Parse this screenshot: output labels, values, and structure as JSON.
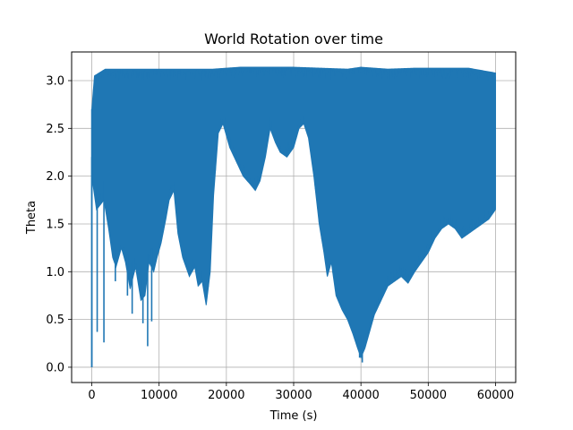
{
  "chart_data": {
    "type": "line",
    "title": "World Rotation over time",
    "xlabel": "Time (s)",
    "ylabel": "Theta",
    "xlim": [
      -3000,
      63000
    ],
    "ylim": [
      -0.16,
      3.3
    ],
    "xticks": [
      0,
      10000,
      20000,
      30000,
      40000,
      50000,
      60000
    ],
    "xtick_labels": [
      "0",
      "10000",
      "20000",
      "30000",
      "40000",
      "50000",
      "60000"
    ],
    "yticks": [
      0.0,
      0.5,
      1.0,
      1.5,
      2.0,
      2.5,
      3.0
    ],
    "ytick_labels": [
      "0.0",
      "0.5",
      "1.0",
      "1.5",
      "2.0",
      "2.5",
      "3.0"
    ],
    "grid": true,
    "color": "#1f77b4",
    "series": [
      {
        "upper": [
          [
            0,
            2.7
          ],
          [
            400,
            3.05
          ],
          [
            2000,
            3.12
          ],
          [
            6000,
            3.12
          ],
          [
            10000,
            3.12
          ],
          [
            12000,
            3.12
          ],
          [
            14000,
            3.12
          ],
          [
            18000,
            3.12
          ],
          [
            22000,
            3.14
          ],
          [
            26000,
            3.14
          ],
          [
            30000,
            3.14
          ],
          [
            34000,
            3.13
          ],
          [
            38000,
            3.12
          ],
          [
            40000,
            3.14
          ],
          [
            44000,
            3.12
          ],
          [
            48000,
            3.13
          ],
          [
            52000,
            3.13
          ],
          [
            56000,
            3.13
          ],
          [
            60000,
            3.08
          ]
        ],
        "lower": [
          [
            0,
            2.0
          ],
          [
            700,
            1.65
          ],
          [
            1800,
            1.75
          ],
          [
            2500,
            1.45
          ],
          [
            3100,
            1.15
          ],
          [
            3600,
            1.05
          ],
          [
            4400,
            1.25
          ],
          [
            5000,
            1.1
          ],
          [
            5700,
            0.82
          ],
          [
            6500,
            1.05
          ],
          [
            7300,
            0.7
          ],
          [
            7900,
            0.75
          ],
          [
            8500,
            1.1
          ],
          [
            9200,
            1.0
          ],
          [
            9700,
            1.15
          ],
          [
            10300,
            1.3
          ],
          [
            11000,
            1.55
          ],
          [
            11500,
            1.75
          ],
          [
            12200,
            1.85
          ],
          [
            12800,
            1.4
          ],
          [
            13500,
            1.15
          ],
          [
            14500,
            0.95
          ],
          [
            15300,
            1.05
          ],
          [
            15800,
            0.85
          ],
          [
            16400,
            0.9
          ],
          [
            17000,
            0.65
          ],
          [
            17600,
            1.0
          ],
          [
            18100,
            1.8
          ],
          [
            18800,
            2.45
          ],
          [
            19500,
            2.55
          ],
          [
            20500,
            2.3
          ],
          [
            21500,
            2.15
          ],
          [
            22500,
            2.0
          ],
          [
            23500,
            1.92
          ],
          [
            24300,
            1.85
          ],
          [
            25000,
            1.95
          ],
          [
            25800,
            2.2
          ],
          [
            26500,
            2.5
          ],
          [
            27300,
            2.35
          ],
          [
            28000,
            2.25
          ],
          [
            29000,
            2.2
          ],
          [
            30000,
            2.3
          ],
          [
            30800,
            2.5
          ],
          [
            31500,
            2.55
          ],
          [
            32200,
            2.4
          ],
          [
            33000,
            2.0
          ],
          [
            33800,
            1.5
          ],
          [
            34500,
            1.2
          ],
          [
            35000,
            0.95
          ],
          [
            35600,
            1.1
          ],
          [
            36300,
            0.75
          ],
          [
            37200,
            0.6
          ],
          [
            38000,
            0.5
          ],
          [
            38800,
            0.35
          ],
          [
            39500,
            0.2
          ],
          [
            40000,
            0.1
          ],
          [
            40600,
            0.2
          ],
          [
            41200,
            0.35
          ],
          [
            42000,
            0.55
          ],
          [
            43000,
            0.7
          ],
          [
            44000,
            0.85
          ],
          [
            45000,
            0.9
          ],
          [
            46000,
            0.95
          ],
          [
            47000,
            0.88
          ],
          [
            48000,
            1.0
          ],
          [
            49000,
            1.1
          ],
          [
            50000,
            1.2
          ],
          [
            51000,
            1.35
          ],
          [
            52000,
            1.45
          ],
          [
            53000,
            1.5
          ],
          [
            54000,
            1.45
          ],
          [
            55000,
            1.35
          ],
          [
            56000,
            1.4
          ],
          [
            57000,
            1.45
          ],
          [
            58000,
            1.5
          ],
          [
            59000,
            1.55
          ],
          [
            60000,
            1.65
          ]
        ],
        "spikes": [
          [
            0,
            0.0
          ],
          [
            800,
            0.37
          ],
          [
            1800,
            0.26
          ],
          [
            6000,
            0.56
          ],
          [
            7600,
            0.46
          ],
          [
            8300,
            0.22
          ],
          [
            8900,
            0.48
          ],
          [
            3500,
            0.9
          ],
          [
            5300,
            0.75
          ],
          [
            40200,
            0.05
          ],
          [
            39800,
            0.1
          ]
        ]
      }
    ]
  }
}
